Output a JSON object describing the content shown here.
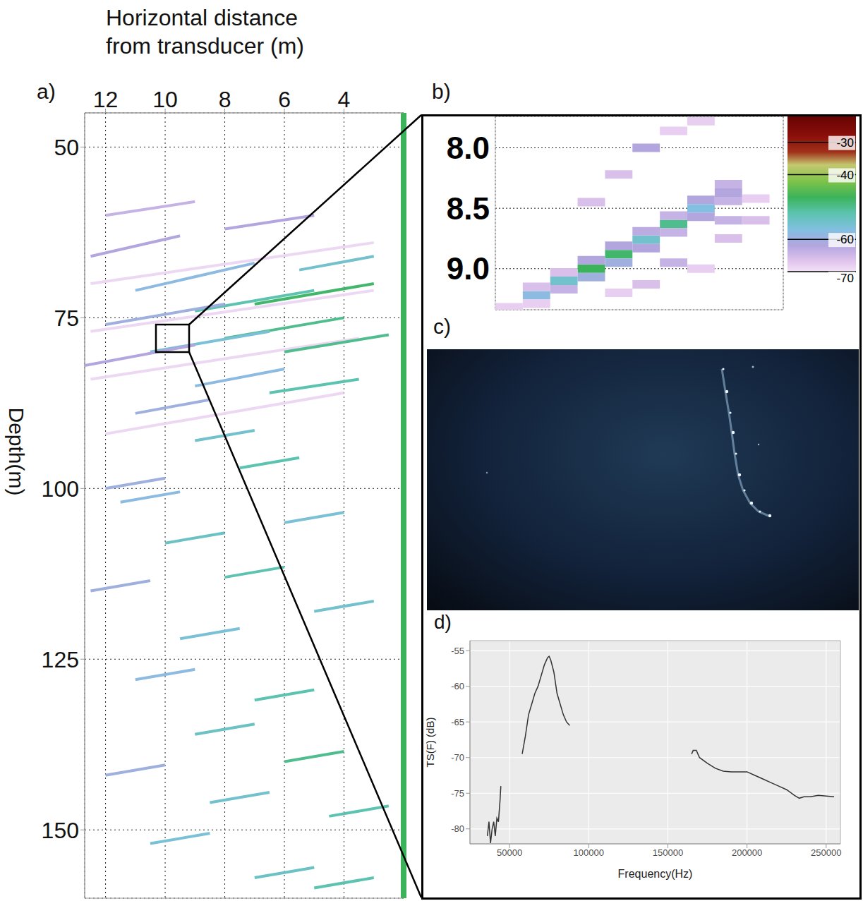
{
  "chart_data": [
    {
      "label": "a)",
      "type": "echogram",
      "x_label": "Horizontal distance from transducer (m)",
      "y_label": "Depth(m)",
      "xlim": [
        12.7,
        2.0
      ],
      "xticks": [
        12,
        10,
        8,
        6,
        4
      ],
      "ylim": [
        45,
        160
      ],
      "yticks": [
        50,
        75,
        100,
        125,
        150
      ],
      "grid": true,
      "traces": [
        {
          "x": [
            12.5,
            3.0
          ],
          "depth": [
            70,
            64
          ],
          "sv": -69
        },
        {
          "x": [
            12.5,
            3.0
          ],
          "depth": [
            77,
            71
          ],
          "sv": -69
        },
        {
          "x": [
            12.5,
            3.5
          ],
          "depth": [
            84,
            78
          ],
          "sv": -69
        },
        {
          "x": [
            12.0,
            4.0
          ],
          "depth": [
            92,
            86
          ],
          "sv": -69
        },
        {
          "x": [
            12.5,
            9.5
          ],
          "depth": [
            66,
            63
          ],
          "sv": -62
        },
        {
          "x": [
            11.0,
            7.0
          ],
          "depth": [
            71,
            67
          ],
          "sv": -58
        },
        {
          "x": [
            9.0,
            5.0
          ],
          "depth": [
            74,
            71
          ],
          "sv": -52
        },
        {
          "x": [
            8.0,
            4.0
          ],
          "depth": [
            78,
            75
          ],
          "sv": -50
        },
        {
          "x": [
            7.0,
            3.0
          ],
          "depth": [
            73,
            70
          ],
          "sv": -48
        },
        {
          "x": [
            12.0,
            8.0
          ],
          "depth": [
            76,
            73
          ],
          "sv": -60
        },
        {
          "x": [
            10.5,
            6.5
          ],
          "depth": [
            80,
            77
          ],
          "sv": -56
        },
        {
          "x": [
            6.0,
            2.5
          ],
          "depth": [
            80,
            77.5
          ],
          "sv": -50
        },
        {
          "x": [
            12.7,
            9.0
          ],
          "depth": [
            82,
            79
          ],
          "sv": -62
        },
        {
          "x": [
            9.0,
            6.0
          ],
          "depth": [
            85,
            82.5
          ],
          "sv": -58
        },
        {
          "x": [
            6.5,
            3.5
          ],
          "depth": [
            86,
            84
          ],
          "sv": -52
        },
        {
          "x": [
            12.0,
            9.0
          ],
          "depth": [
            60,
            58
          ],
          "sv": -64
        },
        {
          "x": [
            8.0,
            5.0
          ],
          "depth": [
            62,
            60
          ],
          "sv": -62
        },
        {
          "x": [
            5.5,
            3.0
          ],
          "depth": [
            68,
            66
          ],
          "sv": -55
        },
        {
          "x": [
            11.0,
            8.5
          ],
          "depth": [
            89,
            87
          ],
          "sv": -60
        },
        {
          "x": [
            9.0,
            7.0
          ],
          "depth": [
            93,
            91.5
          ],
          "sv": -55
        },
        {
          "x": [
            7.5,
            5.5
          ],
          "depth": [
            97,
            95.5
          ],
          "sv": -52
        },
        {
          "x": [
            12.0,
            10.0
          ],
          "depth": [
            100,
            98.5
          ],
          "sv": -60
        },
        {
          "x": [
            11.5,
            9.5
          ],
          "depth": [
            102,
            100.5
          ],
          "sv": -58
        },
        {
          "x": [
            6.0,
            4.0
          ],
          "depth": [
            105,
            103.5
          ],
          "sv": -56
        },
        {
          "x": [
            10.0,
            8.0
          ],
          "depth": [
            108,
            106.5
          ],
          "sv": -54
        },
        {
          "x": [
            8.0,
            6.0
          ],
          "depth": [
            113,
            111.5
          ],
          "sv": -52
        },
        {
          "x": [
            12.5,
            10.5
          ],
          "depth": [
            115,
            113.5
          ],
          "sv": -60
        },
        {
          "x": [
            5.0,
            3.0
          ],
          "depth": [
            118,
            116.5
          ],
          "sv": -55
        },
        {
          "x": [
            9.5,
            7.5
          ],
          "depth": [
            122,
            120.5
          ],
          "sv": -56
        },
        {
          "x": [
            11.0,
            9.0
          ],
          "depth": [
            128,
            126.5
          ],
          "sv": -58
        },
        {
          "x": [
            7.0,
            5.0
          ],
          "depth": [
            131,
            129.5
          ],
          "sv": -52
        },
        {
          "x": [
            9.0,
            7.0
          ],
          "depth": [
            136,
            134.5
          ],
          "sv": -54
        },
        {
          "x": [
            6.0,
            4.0
          ],
          "depth": [
            140,
            138.5
          ],
          "sv": -50
        },
        {
          "x": [
            12.0,
            10.0
          ],
          "depth": [
            142,
            140.5
          ],
          "sv": -60
        },
        {
          "x": [
            8.5,
            6.5
          ],
          "depth": [
            146,
            144.5
          ],
          "sv": -55
        },
        {
          "x": [
            4.5,
            2.5
          ],
          "depth": [
            148,
            146.5
          ],
          "sv": -52
        },
        {
          "x": [
            10.5,
            8.5
          ],
          "depth": [
            152,
            150.5
          ],
          "sv": -56
        },
        {
          "x": [
            7.0,
            5.0
          ],
          "depth": [
            157,
            155.5
          ],
          "sv": -54
        },
        {
          "x": [
            5.0,
            3.0
          ],
          "depth": [
            158.5,
            157
          ],
          "sv": -52
        }
      ]
    },
    {
      "label": "b)",
      "type": "echogram",
      "xlim": [
        0,
        10.5
      ],
      "xticks": [
        0,
        10
      ],
      "ylim": [
        7.74,
        9.34
      ],
      "yticks": [
        {
          "value": 8,
          "label": "8.0"
        },
        {
          "value": 8.5,
          "label": "8.5"
        },
        {
          "value": 9,
          "label": "9.0"
        }
      ],
      "grid": true,
      "tick_labels": "y",
      "cell_height": 0.07,
      "cells": [
        {
          "ping": 0,
          "range": 9.32,
          "sv": -68
        },
        {
          "ping": 1,
          "range": 9.22,
          "sv": -58
        },
        {
          "ping": 2,
          "range": 9.1,
          "sv": -55
        },
        {
          "ping": 3,
          "range": 9.0,
          "sv": -47
        },
        {
          "ping": 4,
          "range": 8.88,
          "sv": -48
        },
        {
          "ping": 5,
          "range": 8.76,
          "sv": -55
        },
        {
          "ping": 6,
          "range": 8.63,
          "sv": -50
        },
        {
          "ping": 7,
          "range": 8.5,
          "sv": -57
        },
        {
          "ping": 8,
          "range": 8.37,
          "sv": -62
        },
        {
          "ping": 9,
          "range": 8.42,
          "sv": -68
        },
        {
          "ping": 1,
          "range": 9.15,
          "sv": -66
        },
        {
          "ping": 1,
          "range": 9.29,
          "sv": -68
        },
        {
          "ping": 2,
          "range": 9.03,
          "sv": -66
        },
        {
          "ping": 2,
          "range": 9.17,
          "sv": -64
        },
        {
          "ping": 3,
          "range": 8.93,
          "sv": -62
        },
        {
          "ping": 3,
          "range": 9.07,
          "sv": -60
        },
        {
          "ping": 4,
          "range": 8.81,
          "sv": -62
        },
        {
          "ping": 4,
          "range": 8.95,
          "sv": -60
        },
        {
          "ping": 5,
          "range": 8.69,
          "sv": -63
        },
        {
          "ping": 5,
          "range": 8.83,
          "sv": -62
        },
        {
          "ping": 6,
          "range": 8.56,
          "sv": -64
        },
        {
          "ping": 6,
          "range": 8.7,
          "sv": -64
        },
        {
          "ping": 7,
          "range": 8.43,
          "sv": -62
        },
        {
          "ping": 7,
          "range": 8.57,
          "sv": -62
        },
        {
          "ping": 8,
          "range": 8.3,
          "sv": -64
        },
        {
          "ping": 8,
          "range": 8.44,
          "sv": -64
        },
        {
          "ping": 3,
          "range": 8.45,
          "sv": -66
        },
        {
          "ping": 4,
          "range": 8.22,
          "sv": -66
        },
        {
          "ping": 5,
          "range": 8.0,
          "sv": -62
        },
        {
          "ping": 6,
          "range": 7.86,
          "sv": -68
        },
        {
          "ping": 7,
          "range": 7.78,
          "sv": -68
        },
        {
          "ping": 8,
          "range": 8.6,
          "sv": -64
        },
        {
          "ping": 9,
          "range": 8.6,
          "sv": -66
        },
        {
          "ping": 6,
          "range": 8.95,
          "sv": -64
        },
        {
          "ping": 7,
          "range": 9.0,
          "sv": -68
        },
        {
          "ping": 4,
          "range": 9.2,
          "sv": -68
        },
        {
          "ping": 5,
          "range": 9.13,
          "sv": -66
        },
        {
          "ping": 8,
          "range": 8.75,
          "sv": -66
        }
      ],
      "colorbar": {
        "range": [
          -70,
          -22
        ],
        "ticks": [
          -30,
          -40,
          -60,
          -70
        ]
      }
    },
    {
      "label": "c)",
      "type": "photo"
    },
    {
      "label": "d)",
      "type": "line",
      "x_label": "Frequency(Hz)",
      "y_label": "TS(F) (dB)",
      "xlim": [
        25000,
        259000
      ],
      "xticks": [
        50000,
        100000,
        150000,
        200000,
        250000
      ],
      "ylim": [
        -82.1,
        -53.6
      ],
      "yticks": [
        -80,
        -75,
        -70,
        -65,
        -60,
        -55
      ],
      "grid": true,
      "color": "#333333",
      "x": [
        36000,
        37000,
        38000,
        39000,
        40000,
        41000,
        42000,
        43000,
        44000,
        44500,
        51000,
        58000,
        60000,
        62000,
        64000,
        66000,
        68000,
        70000,
        72000,
        74000,
        75000,
        76000,
        78000,
        80000,
        82000,
        84000,
        86000,
        88000,
        120000,
        165000,
        166000,
        168000,
        170000,
        175000,
        180000,
        185000,
        190000,
        195000,
        200000,
        205000,
        210000,
        215000,
        220000,
        225000,
        230000,
        233000,
        236000,
        240000,
        245000,
        250000,
        255000
      ],
      "values": [
        -81,
        -79,
        -82,
        -80,
        -79,
        -81,
        -78.5,
        -79,
        -76,
        -74,
        null,
        -69.5,
        -67,
        -64,
        -62.5,
        -61,
        -60,
        -58.5,
        -57,
        -56,
        -55.8,
        -56.3,
        -58,
        -61,
        -62.5,
        -64,
        -65,
        -65.5,
        null,
        -69.5,
        -69,
        -69,
        -70,
        -70.8,
        -71.5,
        -71.9,
        -72,
        -72,
        -72,
        -72.5,
        -73,
        -73.5,
        -74,
        -74.5,
        -75.3,
        -75.7,
        -75.5,
        -75.5,
        -75.3,
        -75.4,
        -75.5
      ]
    }
  ]
}
